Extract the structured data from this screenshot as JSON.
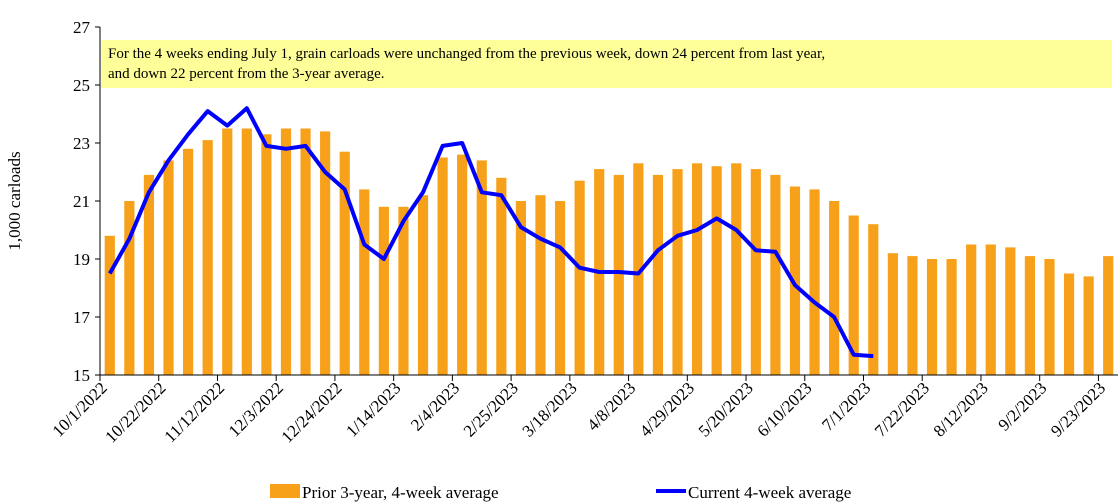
{
  "chart_data": {
    "type": "bar_line",
    "annotation": [
      "For the 4 weeks ending July 1, grain carloads were unchanged  from the previous week, down 24 percent from last year,",
      "and down 22 percent from the 3-year average."
    ],
    "y_label": "1,000 carloads",
    "categories": [
      "10/1/2022",
      null,
      null,
      "10/22/2022",
      null,
      null,
      "11/12/2022",
      null,
      null,
      "12/3/2022",
      null,
      null,
      "12/24/2022",
      null,
      null,
      "1/14/2023",
      null,
      null,
      "2/4/2023",
      null,
      null,
      "2/25/2023",
      null,
      null,
      "3/18/2023",
      null,
      null,
      "4/8/2023",
      null,
      null,
      "4/29/2023",
      null,
      null,
      "5/20/2023",
      null,
      null,
      "6/10/2023",
      null,
      null,
      "7/1/2023",
      null,
      null,
      "7/22/2023",
      null,
      null,
      "8/12/2023",
      null,
      null,
      "9/2/2023",
      null,
      null,
      "9/23/2023"
    ],
    "series": [
      {
        "name": "Prior 3-year, 4-week average",
        "color": "#f7a11a",
        "kind": "bar",
        "values": [
          19.8,
          21.0,
          21.9,
          22.4,
          22.8,
          23.1,
          23.5,
          23.5,
          23.3,
          23.5,
          23.5,
          23.4,
          22.7,
          21.4,
          20.8,
          20.8,
          21.2,
          22.5,
          22.6,
          22.4,
          21.8,
          21.0,
          21.2,
          21.0,
          21.7,
          22.1,
          21.9,
          22.3,
          21.9,
          22.1,
          22.3,
          22.2,
          22.3,
          22.1,
          21.9,
          21.5,
          21.4,
          21.0,
          20.5,
          20.2,
          19.2,
          19.1,
          19.0,
          19.0,
          19.5,
          19.5,
          19.4,
          19.1,
          19.0,
          18.5,
          18.4,
          19.1
        ]
      },
      {
        "name": "Current 4-week average",
        "color": "#0000ff",
        "kind": "line",
        "values": [
          18.5,
          19.7,
          21.3,
          22.4,
          23.3,
          24.1,
          23.6,
          24.2,
          22.9,
          22.8,
          22.9,
          22.0,
          21.4,
          19.5,
          19.0,
          20.3,
          21.3,
          22.9,
          23.0,
          21.3,
          21.2,
          20.1,
          19.7,
          19.4,
          18.7,
          18.55,
          18.55,
          18.5,
          19.3,
          19.8,
          20.0,
          20.4,
          20.0,
          19.3,
          19.25,
          18.1,
          17.5,
          17.0,
          15.7,
          15.65,
          null,
          null,
          null,
          null,
          null,
          null,
          null,
          null,
          null,
          null,
          null,
          null
        ]
      }
    ],
    "ylim": [
      15,
      27
    ],
    "yticks": [
      15,
      17,
      19,
      21,
      23,
      25,
      27
    ],
    "grid": false
  }
}
